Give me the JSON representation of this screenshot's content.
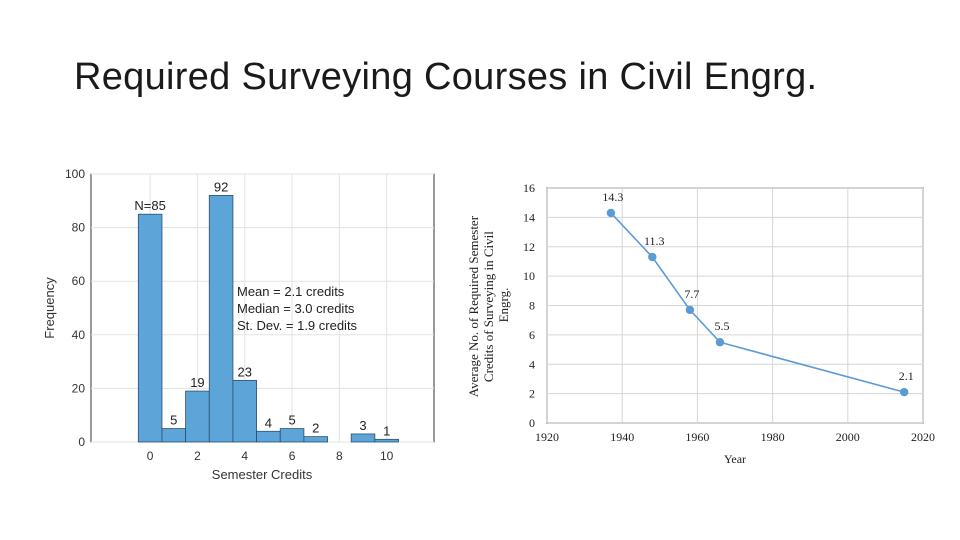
{
  "slide": {
    "title": "Required Surveying Courses in Civil Engrg."
  },
  "chart_data": [
    {
      "type": "bar",
      "subtype": "histogram",
      "xlabel": "Semester Credits",
      "ylabel": "Frequency",
      "xlim": [
        -2.5,
        12
      ],
      "ylim": [
        0,
        100
      ],
      "x_ticks": [
        0,
        2,
        4,
        6,
        8,
        10
      ],
      "y_ticks": [
        0,
        20,
        40,
        60,
        80,
        100
      ],
      "bin_width": 1,
      "bins": [
        {
          "start": -0.5,
          "value": 85,
          "label": "N=85"
        },
        {
          "start": 0.5,
          "value": 5,
          "label": "5"
        },
        {
          "start": 1.5,
          "value": 19,
          "label": "19"
        },
        {
          "start": 2.5,
          "value": 92,
          "label": "92"
        },
        {
          "start": 3.5,
          "value": 23,
          "label": "23"
        },
        {
          "start": 4.5,
          "value": 4,
          "label": "4"
        },
        {
          "start": 5.5,
          "value": 5,
          "label": "5"
        },
        {
          "start": 6.5,
          "value": 2,
          "label": "2"
        },
        {
          "start": 7.5,
          "value": 0,
          "label": ""
        },
        {
          "start": 8.5,
          "value": 3,
          "label": "3"
        },
        {
          "start": 9.5,
          "value": 1,
          "label": "1"
        }
      ],
      "annotations": [
        "Mean = 2.1 credits",
        "Median = 3.0 credits",
        "St. Dev. = 1.9 credits"
      ],
      "grid": true,
      "bar_color": "#5DA5D8"
    },
    {
      "type": "line",
      "xlabel": "Year",
      "ylabel": "Average No. of Required Semester Credits of Surveying in Civil Engrg.",
      "xlim": [
        1920,
        2020
      ],
      "ylim": [
        0,
        16
      ],
      "x_ticks": [
        1920,
        1940,
        1960,
        1980,
        2000,
        2020
      ],
      "y_ticks": [
        0,
        2,
        4,
        6,
        8,
        10,
        12,
        14,
        16
      ],
      "points": [
        {
          "x": 1937,
          "y": 14.3,
          "label": "14.3"
        },
        {
          "x": 1948,
          "y": 11.3,
          "label": "11.3"
        },
        {
          "x": 1958,
          "y": 7.7,
          "label": "7.7"
        },
        {
          "x": 1966,
          "y": 5.5,
          "label": "5.5"
        },
        {
          "x": 2015,
          "y": 2.1,
          "label": "2.1"
        }
      ],
      "grid": true,
      "line_color": "#5B9BD5"
    }
  ]
}
